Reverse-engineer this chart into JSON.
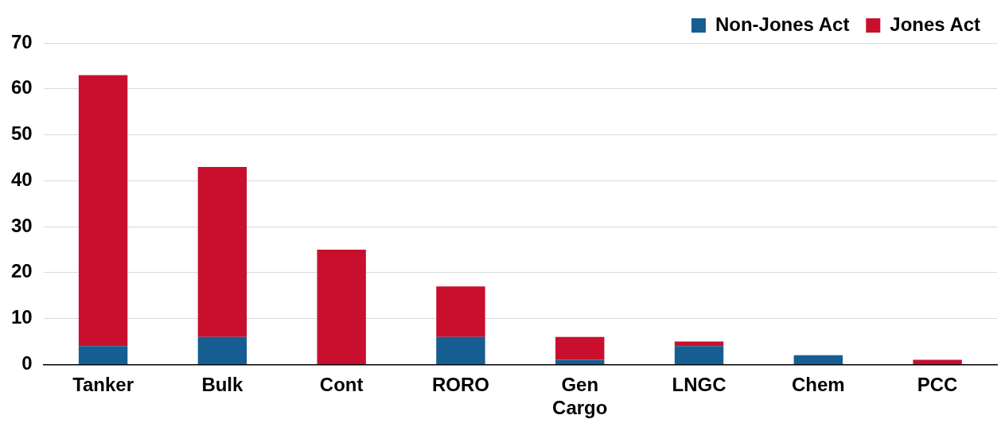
{
  "chart_data": {
    "type": "bar",
    "stacked": true,
    "categories": [
      "Tanker",
      "Bulk",
      "Cont",
      "RORO",
      "Gen Cargo",
      "LNGC",
      "Chem",
      "PCC"
    ],
    "series": [
      {
        "name": "Non-Jones Act",
        "color": "#165e91",
        "values": [
          4,
          6,
          0,
          6,
          1,
          4,
          2,
          0
        ]
      },
      {
        "name": "Jones Act",
        "color": "#c8102e",
        "values": [
          59,
          37,
          25,
          11,
          5,
          1,
          0,
          1
        ]
      }
    ],
    "ylim": [
      0,
      70
    ],
    "yticks": [
      0,
      10,
      20,
      30,
      40,
      50,
      60,
      70
    ],
    "grid": "y",
    "legend": "top right"
  }
}
